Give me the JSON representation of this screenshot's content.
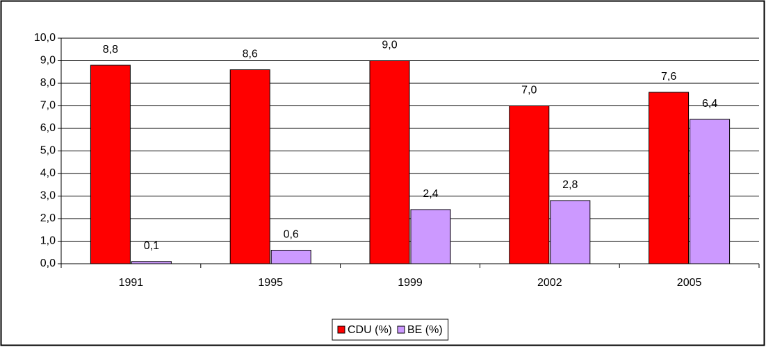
{
  "chart_data": {
    "type": "bar",
    "categories": [
      "1991",
      "1995",
      "1999",
      "2002",
      "2005"
    ],
    "series": [
      {
        "name": "CDU (%)",
        "color": "#ff0000",
        "values": [
          8.8,
          8.6,
          9.0,
          7.0,
          7.6
        ],
        "value_labels": [
          "8,8",
          "8,6",
          "9,0",
          "7,0",
          "7,6"
        ]
      },
      {
        "name": "BE (%)",
        "color": "#cc99ff",
        "values": [
          0.1,
          0.6,
          2.4,
          2.8,
          6.4
        ],
        "value_labels": [
          "0,1",
          "0,6",
          "2,4",
          "2,8",
          "6,4"
        ]
      }
    ],
    "ylim": [
      0,
      10
    ],
    "yticks": [
      {
        "value": 0,
        "label": "0,0"
      },
      {
        "value": 1,
        "label": "1,0"
      },
      {
        "value": 2,
        "label": "2,0"
      },
      {
        "value": 3,
        "label": "3,0"
      },
      {
        "value": 4,
        "label": "4,0"
      },
      {
        "value": 5,
        "label": "5,0"
      },
      {
        "value": 6,
        "label": "6,0"
      },
      {
        "value": 7,
        "label": "7,0"
      },
      {
        "value": 8,
        "label": "8,0"
      },
      {
        "value": 9,
        "label": "9,0"
      },
      {
        "value": 10,
        "label": "10,0"
      }
    ],
    "grid": true,
    "legend": "bottom"
  }
}
